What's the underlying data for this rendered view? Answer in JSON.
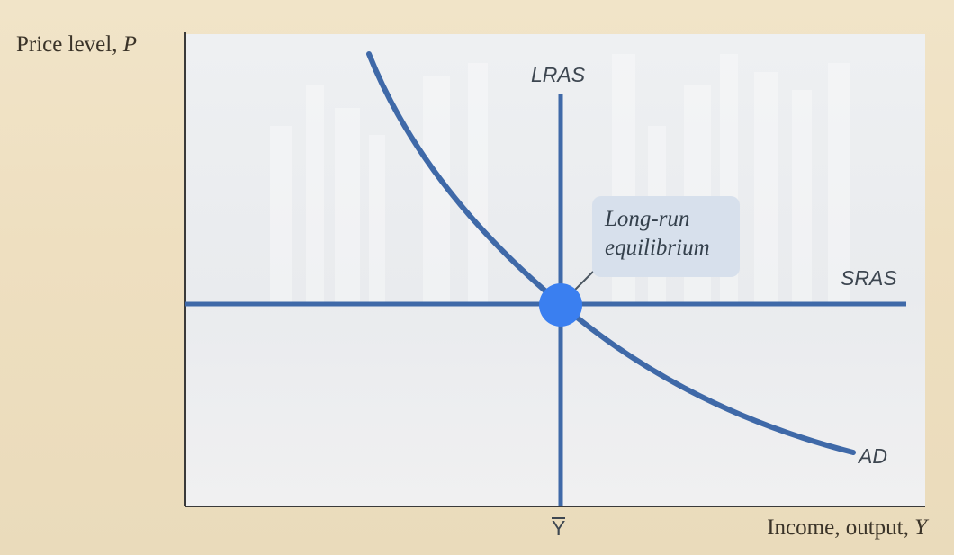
{
  "axes": {
    "y_label": "Price level, ",
    "y_var": "P",
    "x_label": "Income, output, ",
    "x_var": "Y",
    "x_tick": "Y"
  },
  "curves": {
    "lras": "LRAS",
    "sras": "SRAS",
    "ad": "AD"
  },
  "callout": {
    "line1": "Long-run",
    "line2": "equilibrium"
  },
  "colors": {
    "curve": "#3f69a8",
    "equilibrium_point": "#3a7ff0",
    "callout_bg": "#d7e0ec"
  }
}
